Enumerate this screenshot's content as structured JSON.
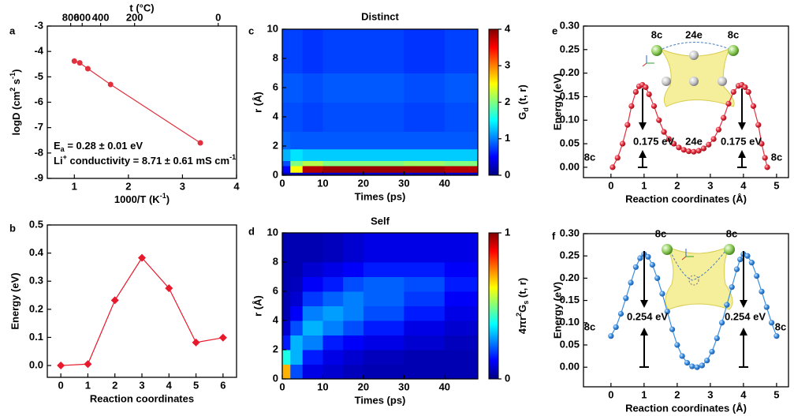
{
  "chart_data": [
    {
      "label": "a",
      "type": "scatter",
      "line": true,
      "color": "#e0303e",
      "x": [
        1.0,
        1.1,
        1.25,
        1.67,
        3.33
      ],
      "values": [
        -4.38,
        -4.45,
        -4.68,
        -5.3,
        -7.6
      ],
      "xlim": [
        0.5,
        4
      ],
      "ylim": [
        -9,
        -3
      ],
      "xticks": [
        1,
        2,
        3,
        4
      ],
      "yticks": [
        -9,
        -8,
        -7,
        -6,
        -5,
        -4,
        -3
      ],
      "xlabel": [
        "1000/T (K",
        "-1",
        ")"
      ],
      "ylabel": [
        "logD (cm",
        "2",
        " s",
        "-1",
        ")"
      ],
      "x2label": "t (°C)",
      "x2ticks": [
        {
          "value": 0.932,
          "label": "800"
        },
        {
          "value": 1.145,
          "label": "600"
        },
        {
          "value": 1.486,
          "label": "400"
        },
        {
          "value": 2.114,
          "label": "200"
        },
        {
          "value": 3.661,
          "label": "0"
        }
      ],
      "annotations": [
        [
          "E",
          "a",
          " = 0.28 ± 0.01 eV"
        ],
        [
          "Li",
          "+",
          " conductivity = 8.71 ± 0.61 mS cm",
          "-1"
        ]
      ]
    },
    {
      "label": "b",
      "type": "line",
      "marker": "diamond",
      "color": "#e8192c",
      "x": [
        0,
        1,
        2,
        3,
        4,
        5,
        6
      ],
      "values": [
        0,
        0.005,
        0.232,
        0.383,
        0.275,
        0.082,
        0.099
      ],
      "xlim": [
        -0.5,
        6.5
      ],
      "ylim": [
        -0.042,
        0.5
      ],
      "xticks": [
        0,
        1,
        2,
        3,
        4,
        5,
        6
      ],
      "yticks": [
        {
          "value": 0,
          "label": "0.0"
        },
        {
          "value": 0.1,
          "label": "0.1"
        },
        {
          "value": 0.2,
          "label": "0.2"
        },
        {
          "value": 0.3,
          "label": "0.3"
        },
        {
          "value": 0.4,
          "label": "0.4"
        },
        {
          "value": 0.5,
          "label": "0.5"
        }
      ],
      "xlabel": "Reaction coordinates",
      "ylabel": "Energy (eV)"
    },
    {
      "label": "c",
      "type": "heatmap",
      "title": "Distinct",
      "colormap": "jet",
      "t_bins": [
        0,
        2,
        5,
        10,
        20,
        30,
        40,
        48
      ],
      "r_bins": [
        0,
        0.2,
        0.65,
        1.0,
        1.8,
        3,
        5,
        7,
        10
      ],
      "z": [
        [
          0.2,
          0.2,
          0.3,
          0.3,
          0.3,
          0.3,
          0.3
        ],
        [
          0.5,
          2.5,
          3.8,
          3.9,
          3.9,
          3.9,
          3.8
        ],
        [
          0.8,
          2.0,
          2.2,
          2.0,
          2.0,
          2.1,
          2.0
        ],
        [
          1.2,
          1.4,
          1.3,
          1.3,
          1.3,
          1.3,
          1.3
        ],
        [
          0.9,
          0.85,
          0.85,
          0.85,
          0.85,
          0.85,
          0.85
        ],
        [
          0.8,
          0.8,
          0.75,
          0.8,
          0.8,
          0.75,
          0.8
        ],
        [
          0.85,
          0.85,
          0.8,
          0.85,
          0.85,
          0.8,
          0.85
        ],
        [
          0.75,
          0.75,
          0.7,
          0.75,
          0.75,
          0.7,
          0.75
        ]
      ],
      "xlim": [
        0,
        48.2
      ],
      "ylim": [
        0,
        10
      ],
      "xticks": [
        0,
        10,
        20,
        30,
        40
      ],
      "yticks": [
        0,
        2,
        4,
        6,
        8,
        10
      ],
      "xlabel": "Times (ps)",
      "ylabel": "r (Å)",
      "colorbar_lim": [
        0,
        4
      ],
      "colorbar_ticks": [
        0,
        1,
        2,
        3,
        4
      ],
      "colorbar_label": [
        "G",
        "d",
        " (t, r)"
      ]
    },
    {
      "label": "d",
      "type": "heatmap",
      "title": "Self",
      "colormap": "jet",
      "t_bins": [
        0,
        2,
        5,
        10,
        15,
        20,
        30,
        40,
        48
      ],
      "r_bins": [
        0,
        1,
        2,
        3,
        4,
        5,
        6,
        7,
        8,
        10
      ],
      "z": [
        [
          0.7,
          0.2,
          0.1,
          0.08,
          0.06,
          0.05,
          0.05,
          0.05
        ],
        [
          0.4,
          0.3,
          0.15,
          0.1,
          0.08,
          0.06,
          0.05,
          0.05
        ],
        [
          0.15,
          0.3,
          0.25,
          0.15,
          0.12,
          0.1,
          0.08,
          0.06
        ],
        [
          0.08,
          0.2,
          0.3,
          0.25,
          0.2,
          0.15,
          0.1,
          0.08
        ],
        [
          0.05,
          0.12,
          0.25,
          0.28,
          0.25,
          0.2,
          0.15,
          0.1
        ],
        [
          0.05,
          0.08,
          0.18,
          0.22,
          0.25,
          0.22,
          0.18,
          0.12
        ],
        [
          0.05,
          0.06,
          0.12,
          0.15,
          0.2,
          0.22,
          0.2,
          0.15
        ],
        [
          0.05,
          0.05,
          0.08,
          0.1,
          0.12,
          0.15,
          0.15,
          0.12
        ],
        [
          0.05,
          0.05,
          0.05,
          0.06,
          0.08,
          0.1,
          0.1,
          0.1
        ]
      ],
      "xlim": [
        0,
        48.2
      ],
      "ylim": [
        0,
        10
      ],
      "xticks": [
        0,
        10,
        20,
        30,
        40
      ],
      "yticks": [
        0,
        2,
        4,
        6,
        8,
        10
      ],
      "xlabel": "Times (ps)",
      "ylabel": "r (Å)",
      "colorbar_lim": [
        0,
        1
      ],
      "colorbar_ticks": [
        0,
        1
      ],
      "colorbar_label": [
        "4πr",
        "2",
        "G",
        "s",
        " (t, r)"
      ]
    },
    {
      "label": "e",
      "type": "line",
      "marker": "sphere",
      "color": "#e52d3d",
      "x": [
        0.05,
        0.2,
        0.35,
        0.5,
        0.62,
        0.75,
        0.85,
        0.95,
        1.05,
        1.15,
        1.3,
        1.45,
        1.6,
        1.75,
        1.9,
        2.05,
        2.2,
        2.35,
        2.5,
        2.65,
        2.8,
        2.95,
        3.1,
        3.25,
        3.4,
        3.55,
        3.7,
        3.85,
        3.95,
        4.05,
        4.15,
        4.3,
        4.45,
        4.55,
        4.65,
        4.72
      ],
      "values": [
        0.0,
        0.02,
        0.05,
        0.09,
        0.13,
        0.16,
        0.172,
        0.175,
        0.17,
        0.155,
        0.13,
        0.1,
        0.075,
        0.06,
        0.05,
        0.042,
        0.037,
        0.034,
        0.033,
        0.035,
        0.04,
        0.048,
        0.06,
        0.08,
        0.105,
        0.135,
        0.16,
        0.173,
        0.175,
        0.17,
        0.16,
        0.13,
        0.09,
        0.05,
        0.02,
        0.0
      ],
      "xlim": [
        -0.83,
        5.36
      ],
      "ylim": [
        -0.022,
        0.3
      ],
      "xticks": [
        0,
        1,
        2,
        3,
        4,
        5
      ],
      "yticks": [
        {
          "value": 0,
          "label": "0.00"
        },
        {
          "value": 0.05,
          "label": "0.05"
        },
        {
          "value": 0.1,
          "label": "0.10"
        },
        {
          "value": 0.15,
          "label": "0.15"
        },
        {
          "value": 0.2,
          "label": "0.20"
        },
        {
          "value": 0.25,
          "label": "0.25"
        },
        {
          "value": 0.3,
          "label": "0.30"
        }
      ],
      "xlabel": "Reaction coordinates (Å)",
      "ylabel": "Energy (eV)",
      "annotations": [
        "8c",
        "0.175 eV",
        "24e",
        "0.175 eV",
        "8c"
      ],
      "inset_labels": [
        "8c",
        "24e",
        "8c"
      ]
    },
    {
      "label": "f",
      "type": "line",
      "marker": "sphere",
      "color": "#3b8fe0",
      "x": [
        0,
        0.15,
        0.3,
        0.45,
        0.6,
        0.75,
        0.88,
        1.0,
        1.12,
        1.25,
        1.4,
        1.55,
        1.7,
        1.85,
        2.0,
        2.15,
        2.3,
        2.45,
        2.6,
        2.75,
        2.9,
        3.05,
        3.2,
        3.35,
        3.5,
        3.65,
        3.8,
        3.9,
        4.0,
        4.12,
        4.25,
        4.4,
        4.55,
        4.7,
        4.85,
        5.0
      ],
      "values": [
        0.07,
        0.09,
        0.12,
        0.155,
        0.19,
        0.225,
        0.245,
        0.254,
        0.248,
        0.23,
        0.2,
        0.165,
        0.125,
        0.085,
        0.05,
        0.025,
        0.01,
        0.002,
        0.0,
        0.004,
        0.015,
        0.035,
        0.065,
        0.1,
        0.14,
        0.18,
        0.22,
        0.242,
        0.254,
        0.25,
        0.235,
        0.205,
        0.17,
        0.135,
        0.1,
        0.07
      ],
      "xlim": [
        -0.83,
        5.36
      ],
      "ylim": [
        -0.044,
        0.3
      ],
      "xticks": [
        0,
        1,
        2,
        3,
        4,
        5
      ],
      "yticks": [
        {
          "value": 0,
          "label": "0.00"
        },
        {
          "value": 0.05,
          "label": "0.05"
        },
        {
          "value": 0.1,
          "label": "0.10"
        },
        {
          "value": 0.15,
          "label": "0.15"
        },
        {
          "value": 0.2,
          "label": "0.20"
        },
        {
          "value": 0.25,
          "label": "0.25"
        },
        {
          "value": 0.3,
          "label": "0.30"
        }
      ],
      "xlabel": "Reaction coordinates (Å)",
      "ylabel": "Energy (eV)",
      "annotations": [
        "8c",
        "0.254 eV",
        "0.254 eV",
        "8c"
      ],
      "inset_labels": [
        "8c",
        "8c"
      ]
    }
  ]
}
